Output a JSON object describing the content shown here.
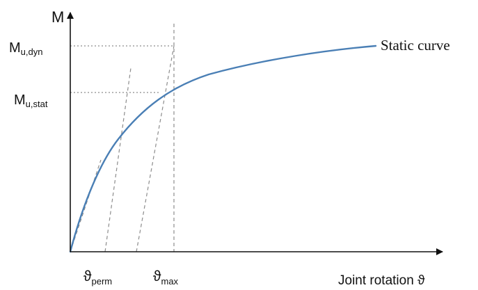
{
  "axes": {
    "y_label": "M",
    "x_label": "Joint rotation ϑ"
  },
  "levels": {
    "mu_dyn": {
      "base": "M",
      "sub": "u,dyn"
    },
    "mu_stat": {
      "base": "M",
      "sub": "u,stat"
    }
  },
  "rotations": {
    "perm": {
      "base": "ϑ",
      "sub": "perm"
    },
    "max": {
      "base": "ϑ",
      "sub": "max"
    }
  },
  "curve": {
    "label": "Static curve"
  },
  "colors": {
    "curve": "#4a7fb5",
    "axes": "#111111",
    "guides": "#8c8c8c"
  }
}
